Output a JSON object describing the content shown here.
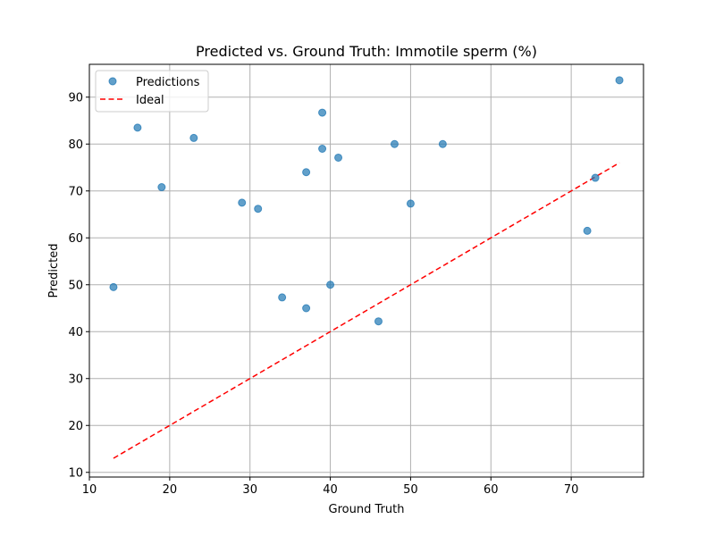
{
  "chart_data": {
    "type": "scatter",
    "title": "Predicted vs. Ground Truth: Immotile sperm (%)",
    "xlabel": "Ground Truth",
    "ylabel": "Predicted",
    "xlim": [
      10,
      79
    ],
    "ylim": [
      9,
      97
    ],
    "xticks": [
      10,
      20,
      30,
      40,
      50,
      60,
      70
    ],
    "yticks": [
      10,
      20,
      30,
      40,
      50,
      60,
      70,
      80,
      90
    ],
    "grid": true,
    "legend_position": "top-left",
    "series": [
      {
        "name": "Predictions",
        "kind": "scatter",
        "color": "#1f77b4",
        "points": [
          {
            "x": 13,
            "y": 49.5
          },
          {
            "x": 16,
            "y": 83.5
          },
          {
            "x": 19,
            "y": 70.8
          },
          {
            "x": 23,
            "y": 81.3
          },
          {
            "x": 29,
            "y": 67.5
          },
          {
            "x": 31,
            "y": 66.2
          },
          {
            "x": 34,
            "y": 47.3
          },
          {
            "x": 37,
            "y": 74.0
          },
          {
            "x": 37,
            "y": 45.0
          },
          {
            "x": 39,
            "y": 86.7
          },
          {
            "x": 39,
            "y": 79.0
          },
          {
            "x": 40,
            "y": 50.0
          },
          {
            "x": 41,
            "y": 77.1
          },
          {
            "x": 46,
            "y": 42.2
          },
          {
            "x": 48,
            "y": 80.0
          },
          {
            "x": 50,
            "y": 67.3
          },
          {
            "x": 54,
            "y": 80.0
          },
          {
            "x": 72,
            "y": 61.5
          },
          {
            "x": 73,
            "y": 72.8
          },
          {
            "x": 76,
            "y": 93.6
          }
        ]
      },
      {
        "name": "Ideal",
        "kind": "line",
        "style": "dashed",
        "color": "#ff0000",
        "points": [
          {
            "x": 13,
            "y": 13
          },
          {
            "x": 76,
            "y": 76
          }
        ]
      }
    ]
  }
}
